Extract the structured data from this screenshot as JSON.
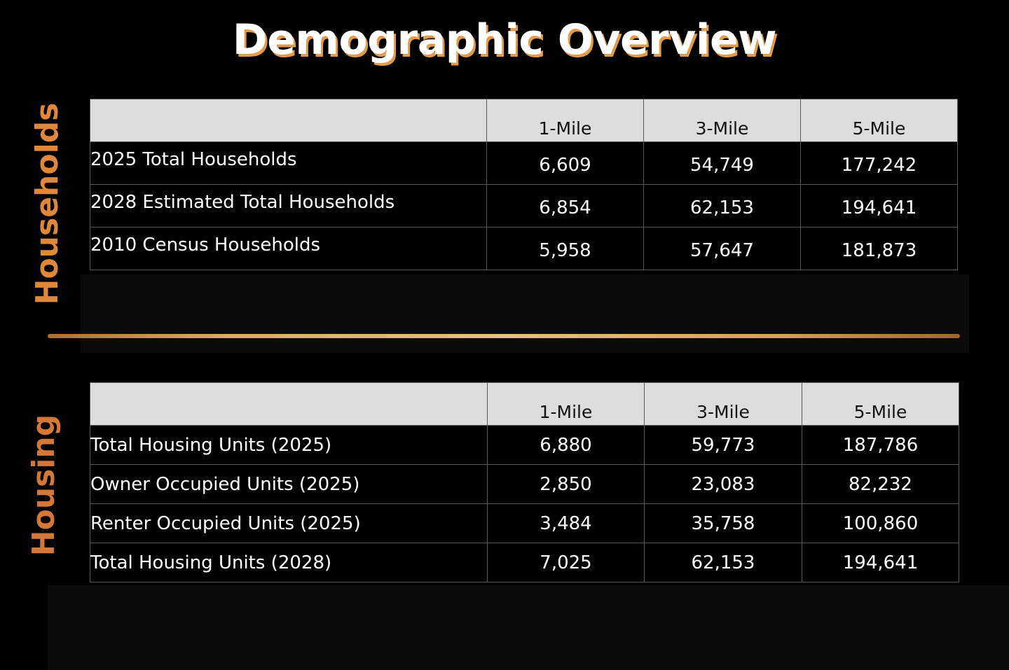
{
  "title": "Demographic Overview",
  "sections": {
    "households_label": "Households",
    "housing_label": "Housing"
  },
  "households_table": {
    "columns": [
      "",
      "1-Mile",
      "3-Mile",
      "5-Mile"
    ],
    "rows": [
      {
        "label": "2025 Total Households",
        "values": [
          "6,609",
          "54,749",
          "177,242"
        ]
      },
      {
        "label": "2028 Estimated Total Households",
        "values": [
          "6,854",
          "62,153",
          "194,641"
        ]
      },
      {
        "label": "2010 Census Households",
        "values": [
          "5,958",
          "57,647",
          "181,873"
        ]
      }
    ]
  },
  "housing_table": {
    "columns": [
      "",
      "1-Mile",
      "3-Mile",
      "5-Mile"
    ],
    "rows": [
      {
        "label": "Total Housing Units (2025)",
        "values": [
          "6,880",
          "59,773",
          "187,786"
        ]
      },
      {
        "label": "Owner Occupied Units (2025)",
        "values": [
          "2,850",
          "23,083",
          "82,232"
        ]
      },
      {
        "label": "Renter Occupied Units (2025)",
        "values": [
          "3,484",
          "35,758",
          "100,860"
        ]
      },
      {
        "label": "Total Housing Units (2028)",
        "values": [
          "7,025",
          "62,153",
          "194,641"
        ]
      }
    ]
  },
  "colors": {
    "background": "#000000",
    "accent": "#e0873a",
    "title_shadow": "#e39a4b",
    "header_bg": "#dcdddd"
  }
}
